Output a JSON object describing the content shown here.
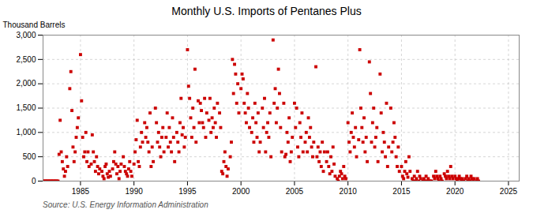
{
  "chart_data": {
    "type": "scatter",
    "title": "Monthly U.S. Imports of Pentanes Plus",
    "ylabel": "Thousand Barrels",
    "annotation": "Source: U.S. Energy Information Administration",
    "color": "#cc0000",
    "marker": "square",
    "grid": true,
    "xlim": [
      1981.5,
      2026
    ],
    "ylim": [
      0,
      3000
    ],
    "xticks": [
      1985,
      1990,
      1995,
      2000,
      2005,
      2010,
      2015,
      2020,
      2025
    ],
    "yticks": [
      0,
      500,
      {
        "value": 1000,
        "label": "1,000"
      },
      {
        "value": 1500,
        "label": "1,500"
      },
      {
        "value": 2000,
        "label": "2,000"
      },
      {
        "value": 2500,
        "label": "2,500"
      },
      {
        "value": 3000,
        "label": "3,000"
      }
    ],
    "x": [
      1981.5,
      1981.6,
      1981.7,
      1981.8,
      1981.9,
      1982.0,
      1982.1,
      1982.2,
      1982.3,
      1982.4,
      1982.5,
      1982.6,
      1982.7,
      1982.8,
      1982.9,
      1983.0,
      1983.1,
      1983.2,
      1983.3,
      1983.4,
      1983.5,
      1983.6,
      1983.7,
      1983.8,
      1984.0,
      1984.1,
      1984.2,
      1984.3,
      1984.4,
      1984.5,
      1984.6,
      1984.7,
      1984.8,
      1985.0,
      1985.1,
      1985.2,
      1985.3,
      1985.4,
      1985.5,
      1985.6,
      1985.7,
      1985.8,
      1986.0,
      1986.1,
      1986.2,
      1986.3,
      1986.4,
      1986.5,
      1986.6,
      1986.7,
      1986.8,
      1987.0,
      1987.1,
      1987.2,
      1987.3,
      1987.4,
      1987.5,
      1987.6,
      1987.7,
      1987.8,
      1988.0,
      1988.1,
      1988.2,
      1988.3,
      1988.4,
      1988.5,
      1988.6,
      1988.7,
      1988.8,
      1989.0,
      1989.1,
      1989.2,
      1989.3,
      1989.4,
      1989.5,
      1989.6,
      1989.7,
      1989.8,
      1990.0,
      1990.1,
      1990.2,
      1990.3,
      1990.4,
      1990.5,
      1990.6,
      1990.7,
      1990.8,
      1991.0,
      1991.1,
      1991.2,
      1991.3,
      1991.4,
      1991.5,
      1991.6,
      1991.7,
      1991.8,
      1992.0,
      1992.1,
      1992.2,
      1992.3,
      1992.4,
      1992.5,
      1992.6,
      1992.7,
      1992.8,
      1993.0,
      1993.1,
      1993.2,
      1993.3,
      1993.4,
      1993.5,
      1993.6,
      1993.7,
      1993.8,
      1994.0,
      1994.1,
      1994.2,
      1994.3,
      1994.4,
      1994.5,
      1994.6,
      1994.7,
      1994.8,
      1995.0,
      1995.1,
      1995.2,
      1995.3,
      1995.4,
      1995.5,
      1995.6,
      1995.7,
      1995.8,
      1996.0,
      1996.1,
      1996.2,
      1996.3,
      1996.4,
      1996.5,
      1996.6,
      1996.7,
      1996.8,
      1997.0,
      1997.1,
      1997.2,
      1997.3,
      1997.4,
      1997.5,
      1997.6,
      1997.7,
      1997.8,
      1998.0,
      1998.1,
      1998.2,
      1998.3,
      1998.4,
      1998.5,
      1998.6,
      1998.7,
      1998.8,
      1999.0,
      1999.1,
      1999.2,
      1999.3,
      1999.4,
      1999.5,
      1999.6,
      1999.7,
      1999.8,
      2000.0,
      2000.1,
      2000.2,
      2000.3,
      2000.4,
      2000.5,
      2000.6,
      2000.7,
      2000.8,
      2001.0,
      2001.1,
      2001.2,
      2001.3,
      2001.4,
      2001.5,
      2001.6,
      2001.7,
      2001.8,
      2002.0,
      2002.1,
      2002.2,
      2002.3,
      2002.4,
      2002.5,
      2002.6,
      2002.7,
      2002.8,
      2003.0,
      2003.1,
      2003.2,
      2003.3,
      2003.4,
      2003.5,
      2003.6,
      2003.7,
      2003.8,
      2004.0,
      2004.1,
      2004.2,
      2004.3,
      2004.4,
      2004.5,
      2004.6,
      2004.7,
      2004.8,
      2005.0,
      2005.1,
      2005.2,
      2005.3,
      2005.4,
      2005.5,
      2005.6,
      2005.7,
      2005.8,
      2006.0,
      2006.1,
      2006.2,
      2006.3,
      2006.4,
      2006.5,
      2006.6,
      2006.7,
      2006.8,
      2007.0,
      2007.1,
      2007.2,
      2007.3,
      2007.4,
      2007.5,
      2007.6,
      2007.7,
      2007.8,
      2008.0,
      2008.1,
      2008.2,
      2008.3,
      2008.4,
      2008.5,
      2008.6,
      2008.7,
      2008.8,
      2009.0,
      2009.1,
      2009.2,
      2009.3,
      2009.4,
      2009.5,
      2009.6,
      2009.7,
      2009.8,
      2010.0,
      2010.1,
      2010.2,
      2010.3,
      2010.4,
      2010.5,
      2010.6,
      2010.7,
      2010.8,
      2011.0,
      2011.1,
      2011.2,
      2011.3,
      2011.4,
      2011.5,
      2011.6,
      2011.7,
      2011.8,
      2012.0,
      2012.1,
      2012.2,
      2012.3,
      2012.4,
      2012.5,
      2012.6,
      2012.7,
      2012.8,
      2013.0,
      2013.1,
      2013.2,
      2013.3,
      2013.4,
      2013.5,
      2013.6,
      2013.7,
      2013.8,
      2014.0,
      2014.1,
      2014.2,
      2014.3,
      2014.4,
      2014.5,
      2014.6,
      2014.7,
      2014.8,
      2015.0,
      2015.1,
      2015.2,
      2015.3,
      2015.4,
      2015.5,
      2015.6,
      2015.7,
      2015.8,
      2016.0,
      2016.1,
      2016.2,
      2016.3,
      2016.4,
      2016.5,
      2016.6,
      2016.7,
      2016.8,
      2017.0,
      2017.1,
      2017.2,
      2017.3,
      2017.4,
      2017.5,
      2017.6,
      2017.7,
      2017.8,
      2018.0,
      2018.1,
      2018.2,
      2018.3,
      2018.4,
      2018.5,
      2018.6,
      2018.7,
      2018.8,
      2019.0,
      2019.1,
      2019.2,
      2019.3,
      2019.4,
      2019.5,
      2019.6,
      2019.7,
      2019.8,
      2020.0,
      2020.1,
      2020.2,
      2020.3,
      2020.4,
      2020.5,
      2020.6,
      2020.7,
      2020.8,
      2021.0,
      2021.1,
      2021.2,
      2021.3,
      2021.4,
      2021.5,
      2021.6,
      2021.7,
      2021.8,
      2022.0,
      2022.1,
      2022.2
    ],
    "values": [
      0,
      0,
      0,
      0,
      0,
      0,
      0,
      0,
      0,
      0,
      0,
      0,
      0,
      0,
      0,
      550,
      1250,
      600,
      400,
      250,
      100,
      200,
      500,
      300,
      1900,
      2250,
      1450,
      700,
      400,
      600,
      900,
      1100,
      1300,
      2600,
      1650,
      900,
      500,
      600,
      1000,
      400,
      600,
      300,
      350,
      950,
      600,
      400,
      200,
      500,
      300,
      150,
      250,
      200,
      100,
      50,
      300,
      350,
      150,
      80,
      200,
      100,
      250,
      400,
      600,
      350,
      150,
      300,
      50,
      200,
      350,
      500,
      300,
      200,
      150,
      100,
      250,
      400,
      200,
      100,
      350,
      600,
      850,
      1250,
      400,
      300,
      700,
      1000,
      800,
      1200,
      900,
      1100,
      800,
      600,
      1400,
      300,
      700,
      400,
      1500,
      1200,
      800,
      1000,
      700,
      500,
      900,
      1100,
      600,
      900,
      1400,
      700,
      1100,
      800,
      600,
      1300,
      900,
      400,
      1000,
      800,
      600,
      1200,
      1700,
      950,
      1100,
      700,
      900,
      2700,
      1950,
      1700,
      1300,
      900,
      1500,
      1100,
      2300,
      800,
      1650,
      1200,
      1600,
      1450,
      1200,
      1100,
      1700,
      900,
      1400,
      1250,
      1700,
      1000,
      1300,
      1100,
      1500,
      1200,
      900,
      1600,
      1400,
      1100,
      200,
      150,
      400,
      600,
      300,
      100,
      250,
      500,
      800,
      2500,
      1800,
      2400,
      2200,
      1600,
      2000,
      1400,
      1900,
      2200,
      2100,
      1600,
      1400,
      1200,
      1800,
      1500,
      1100,
      1000,
      1300,
      800,
      1600,
      1200,
      900,
      1400,
      600,
      800,
      1500,
      1100,
      1700,
      600,
      1000,
      1200,
      900,
      1400,
      500,
      2900,
      1600,
      1900,
      1200,
      1500,
      2300,
      1800,
      1100,
      600,
      1600,
      500,
      550,
      1000,
      800,
      1300,
      400,
      600,
      900,
      1600,
      1100,
      1500,
      700,
      500,
      1200,
      900,
      1400,
      600,
      800,
      1000,
      600,
      1300,
      900,
      1100,
      700,
      500,
      800,
      2350,
      500,
      700,
      400,
      600,
      300,
      800,
      200,
      600,
      400,
      600,
      300,
      150,
      500,
      200,
      700,
      350,
      100,
      50,
      0,
      100,
      200,
      150,
      50,
      300,
      100,
      50,
      1200,
      800,
      600,
      1000,
      1400,
      900,
      700,
      1100,
      500,
      850,
      2700,
      1500,
      1100,
      800,
      1300,
      600,
      900,
      400,
      2450,
      1800,
      800,
      1200,
      1500,
      700,
      900,
      1100,
      400,
      2200,
      1400,
      600,
      1000,
      800,
      500,
      1600,
      300,
      700,
      1500,
      600,
      800,
      1200,
      900,
      500,
      300,
      700,
      200,
      300,
      100,
      50,
      200,
      400,
      150,
      80,
      500,
      200,
      50,
      0,
      100,
      0,
      50,
      200,
      0,
      100,
      50,
      0,
      50,
      0,
      100,
      0,
      50,
      0,
      0,
      0,
      100,
      50,
      200,
      100,
      50,
      0,
      100,
      50,
      0,
      150,
      100,
      50,
      200,
      100,
      50,
      300,
      100,
      50,
      100,
      50,
      0,
      50,
      100,
      50,
      0,
      50,
      0,
      50,
      100,
      0,
      50,
      0,
      100,
      50,
      0,
      50,
      0,
      50,
      0
    ]
  }
}
